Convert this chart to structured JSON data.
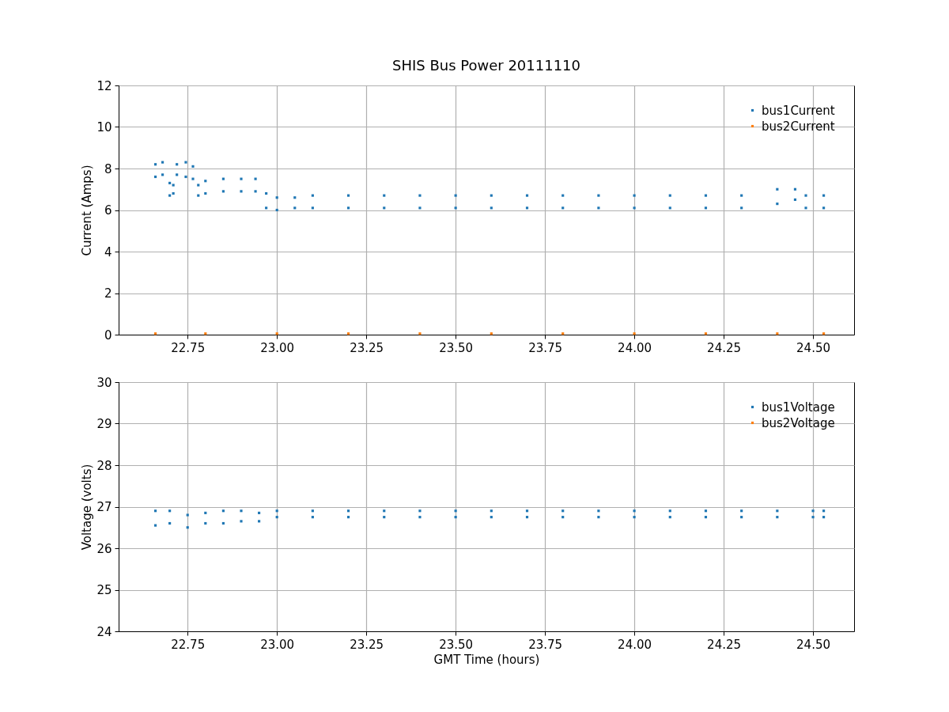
{
  "chart_data": [
    {
      "type": "scatter",
      "title": "SHIS Bus Power 20111110",
      "ylabel": "Current (Amps)",
      "xlim": [
        22.557,
        24.615
      ],
      "ylim": [
        0,
        12
      ],
      "xticks": [
        22.75,
        {
          "value": 23,
          "label": "23.00"
        },
        23.25,
        {
          "value": 23.5,
          "label": "23.50"
        },
        23.75,
        {
          "value": 24,
          "label": "24.00"
        },
        24.25,
        {
          "value": 24.5,
          "label": "24.50"
        }
      ],
      "yticks": [
        0,
        2,
        4,
        6,
        8,
        10,
        12
      ],
      "grid": true,
      "legend": "top right",
      "marker": "square",
      "series": [
        {
          "name": "bus1Current",
          "color": "#1f77b4",
          "x": [
            22.66,
            22.66,
            22.68,
            22.68,
            22.7,
            22.7,
            22.71,
            22.71,
            22.72,
            22.72,
            22.745,
            22.745,
            22.765,
            22.765,
            22.78,
            22.78,
            22.8,
            22.8,
            22.85,
            22.85,
            22.9,
            22.9,
            22.94,
            22.94,
            22.97,
            22.97,
            23.0,
            23.0,
            23.05,
            23.05,
            23.1,
            23.1,
            23.2,
            23.2,
            23.3,
            23.3,
            23.4,
            23.4,
            23.5,
            23.5,
            23.6,
            23.6,
            23.7,
            23.7,
            23.8,
            23.8,
            23.9,
            23.9,
            24.0,
            24.0,
            24.1,
            24.1,
            24.2,
            24.2,
            24.3,
            24.3,
            24.4,
            24.4,
            24.45,
            24.45,
            24.48,
            24.48,
            24.53,
            24.53
          ],
          "values": [
            8.2,
            7.6,
            8.3,
            7.7,
            7.3,
            6.7,
            7.2,
            6.8,
            8.2,
            7.7,
            8.3,
            7.6,
            8.1,
            7.5,
            7.2,
            6.7,
            7.4,
            6.8,
            7.5,
            6.9,
            7.5,
            6.9,
            7.5,
            6.9,
            6.8,
            6.1,
            6.6,
            6.0,
            6.6,
            6.1,
            6.7,
            6.1,
            6.7,
            6.1,
            6.7,
            6.1,
            6.7,
            6.1,
            6.7,
            6.1,
            6.7,
            6.1,
            6.7,
            6.1,
            6.7,
            6.1,
            6.7,
            6.1,
            6.7,
            6.1,
            6.7,
            6.1,
            6.7,
            6.1,
            6.7,
            6.1,
            7.0,
            6.3,
            7.0,
            6.5,
            6.7,
            6.1,
            6.7,
            6.1
          ]
        },
        {
          "name": "bus2Current",
          "color": "#ff7f0e",
          "x": [
            22.66,
            22.8,
            23.0,
            23.2,
            23.4,
            23.6,
            23.8,
            24.0,
            24.2,
            24.4,
            24.53
          ],
          "values": [
            0.05,
            0.05,
            0.05,
            0.05,
            0.05,
            0.05,
            0.05,
            0.05,
            0.05,
            0.05,
            0.05
          ]
        }
      ]
    },
    {
      "type": "scatter",
      "xlabel": "GMT Time (hours)",
      "ylabel": "Voltage (volts)",
      "xlim": [
        22.557,
        24.615
      ],
      "ylim": [
        24,
        30
      ],
      "xticks": [
        22.75,
        {
          "value": 23,
          "label": "23.00"
        },
        23.25,
        {
          "value": 23.5,
          "label": "23.50"
        },
        23.75,
        {
          "value": 24,
          "label": "24.00"
        },
        24.25,
        {
          "value": 24.5,
          "label": "24.50"
        }
      ],
      "yticks": [
        24,
        25,
        26,
        27,
        28,
        29,
        30
      ],
      "grid": true,
      "legend": "top right",
      "marker": "square",
      "series": [
        {
          "name": "bus1Voltage",
          "color": "#1f77b4",
          "x": [
            22.66,
            22.66,
            22.7,
            22.7,
            22.75,
            22.75,
            22.8,
            22.8,
            22.85,
            22.85,
            22.9,
            22.9,
            22.95,
            22.95,
            23.0,
            23.0,
            23.1,
            23.1,
            23.2,
            23.2,
            23.3,
            23.3,
            23.4,
            23.4,
            23.5,
            23.5,
            23.6,
            23.6,
            23.7,
            23.7,
            23.8,
            23.8,
            23.9,
            23.9,
            24.0,
            24.0,
            24.1,
            24.1,
            24.2,
            24.2,
            24.3,
            24.3,
            24.4,
            24.4,
            24.5,
            24.5,
            24.53,
            24.53
          ],
          "values": [
            26.9,
            26.55,
            26.9,
            26.6,
            26.8,
            26.5,
            26.85,
            26.6,
            26.9,
            26.6,
            26.9,
            26.65,
            26.85,
            26.65,
            26.9,
            26.75,
            26.9,
            26.75,
            26.9,
            26.75,
            26.9,
            26.75,
            26.9,
            26.75,
            26.9,
            26.75,
            26.9,
            26.75,
            26.9,
            26.75,
            26.9,
            26.75,
            26.9,
            26.75,
            26.9,
            26.75,
            26.9,
            26.75,
            26.9,
            26.75,
            26.9,
            26.75,
            26.9,
            26.75,
            26.9,
            26.75,
            26.9,
            26.75
          ]
        },
        {
          "name": "bus2Voltage",
          "color": "#ff7f0e"
        }
      ]
    }
  ]
}
